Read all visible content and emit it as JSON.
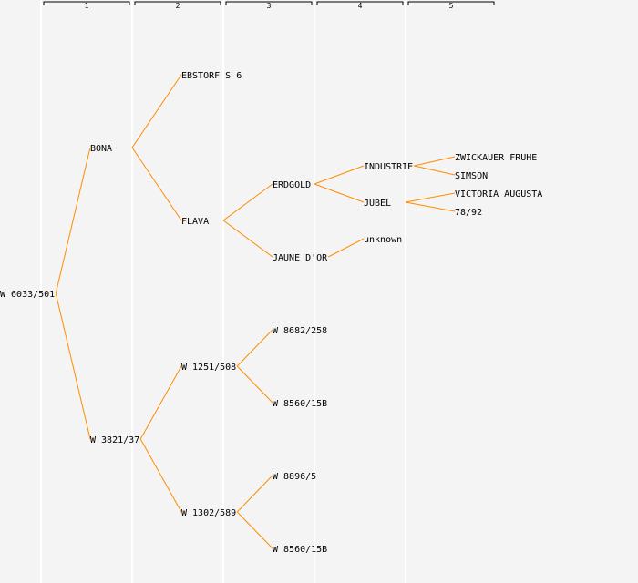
{
  "generations": [
    "1",
    "2",
    "3",
    "4",
    "5"
  ],
  "colors": {
    "edge": "#ff8c00",
    "background": "#f4f4f4",
    "column_divider": "#ffffff"
  },
  "tree": {
    "name": "W 6033/501",
    "children": [
      {
        "name": "BONA",
        "children": [
          {
            "name": "EBSTORF S 6"
          },
          {
            "name": "FLAVA",
            "children": [
              {
                "name": "ERDGOLD",
                "children": [
                  {
                    "name": "INDUSTRIE",
                    "children": [
                      {
                        "name": "ZWICKAUER FRUHE"
                      },
                      {
                        "name": "SIMSON"
                      }
                    ]
                  },
                  {
                    "name": "JUBEL",
                    "children": [
                      {
                        "name": "VICTORIA AUGUSTA"
                      },
                      {
                        "name": "78/92"
                      }
                    ]
                  }
                ]
              },
              {
                "name": "JAUNE D'OR",
                "children": [
                  {
                    "name": "unknown"
                  }
                ]
              }
            ]
          }
        ]
      },
      {
        "name": "W 3821/37",
        "children": [
          {
            "name": "W 1251/508",
            "children": [
              {
                "name": "W 8682/258"
              },
              {
                "name": "W 8560/15B"
              }
            ]
          },
          {
            "name": "W 1302/589",
            "children": [
              {
                "name": "W 8896/5"
              },
              {
                "name": "W 8560/15B"
              }
            ]
          }
        ]
      }
    ]
  }
}
